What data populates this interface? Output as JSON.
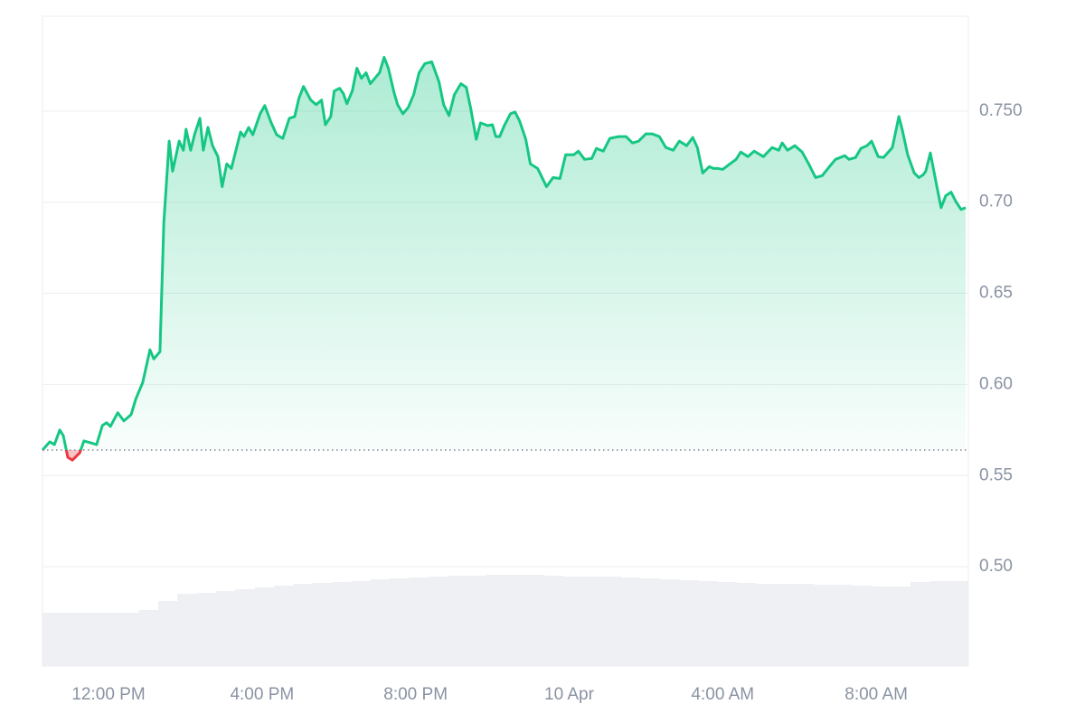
{
  "chart_data": {
    "type": "line",
    "color": "#16c784",
    "down_color": "#ea3943",
    "baseline": 0.564,
    "grid": true,
    "xlim": [
      -1.72,
      22.4
    ],
    "ylim": [
      0.4455,
      0.802
    ],
    "xticks": [
      {
        "value": 0,
        "label": "12:00 PM"
      },
      {
        "value": 4,
        "label": "4:00 PM"
      },
      {
        "value": 8,
        "label": "8:00 PM"
      },
      {
        "value": 12,
        "label": "10 Apr"
      },
      {
        "value": 16,
        "label": "4:00 AM"
      },
      {
        "value": 20,
        "label": "8:00 AM"
      }
    ],
    "yticks": [
      {
        "value": 0.5,
        "label": "0.50"
      },
      0.55,
      {
        "value": 0.6,
        "label": "0.60"
      },
      0.65,
      {
        "value": 0.7,
        "label": "0.70"
      },
      {
        "value": 0.75,
        "label": "0.750"
      }
    ],
    "x": [
      -1.72,
      -1.53,
      -1.41,
      -1.27,
      -1.18,
      -1.06,
      -0.94,
      -0.75,
      -0.64,
      -0.47,
      -0.31,
      -0.16,
      -0.05,
      0.05,
      0.24,
      0.4,
      0.59,
      0.71,
      0.89,
      1.08,
      1.18,
      1.34,
      1.44,
      1.58,
      1.67,
      1.84,
      1.95,
      2.02,
      2.14,
      2.24,
      2.38,
      2.47,
      2.59,
      2.71,
      2.85,
      2.96,
      3.08,
      3.2,
      3.32,
      3.44,
      3.53,
      3.65,
      3.76,
      3.95,
      4.07,
      4.24,
      4.38,
      4.54,
      4.71,
      4.85,
      4.96,
      5.08,
      5.27,
      5.41,
      5.55,
      5.65,
      5.79,
      5.88,
      6.02,
      6.12,
      6.21,
      6.35,
      6.47,
      6.59,
      6.71,
      6.82,
      6.96,
      7.06,
      7.18,
      7.29,
      7.44,
      7.53,
      7.67,
      7.81,
      7.95,
      8.09,
      8.24,
      8.42,
      8.61,
      8.73,
      8.87,
      9.01,
      9.18,
      9.32,
      9.44,
      9.58,
      9.69,
      9.88,
      10,
      10.09,
      10.19,
      10.31,
      10.47,
      10.59,
      10.71,
      10.87,
      10.99,
      11.18,
      11.41,
      11.58,
      11.76,
      11.91,
      12.12,
      12.24,
      12.4,
      12.59,
      12.71,
      12.89,
      13.06,
      13.29,
      13.48,
      13.65,
      13.81,
      14,
      14.16,
      14.35,
      14.52,
      14.71,
      14.87,
      15.06,
      15.22,
      15.34,
      15.48,
      15.65,
      15.76,
      15.88,
      16,
      16.19,
      16.35,
      16.47,
      16.66,
      16.82,
      17.06,
      17.29,
      17.46,
      17.55,
      17.69,
      17.88,
      18.07,
      18.24,
      18.42,
      18.59,
      18.78,
      18.94,
      19.06,
      19.18,
      19.29,
      19.46,
      19.6,
      19.76,
      19.88,
      20.05,
      20.19,
      20.42,
      20.59,
      20.68,
      20.82,
      20.99,
      21.11,
      21.22,
      21.29,
      21.41,
      21.58,
      21.69,
      21.81,
      21.95,
      22.07,
      22.21,
      22.33
    ],
    "values": [
      0.564,
      0.5685,
      0.567,
      0.575,
      0.572,
      0.56,
      0.5585,
      0.5625,
      0.569,
      0.568,
      0.567,
      0.5775,
      0.579,
      0.577,
      0.5845,
      0.58,
      0.5835,
      0.592,
      0.601,
      0.619,
      0.614,
      0.618,
      0.6885,
      0.7335,
      0.717,
      0.7335,
      0.7285,
      0.74,
      0.7285,
      0.737,
      0.746,
      0.7285,
      0.741,
      0.731,
      0.725,
      0.7085,
      0.721,
      0.7185,
      0.7285,
      0.7385,
      0.736,
      0.741,
      0.737,
      0.7485,
      0.753,
      0.7435,
      0.737,
      0.735,
      0.746,
      0.747,
      0.757,
      0.7635,
      0.756,
      0.7535,
      0.756,
      0.7425,
      0.747,
      0.761,
      0.7625,
      0.7595,
      0.754,
      0.761,
      0.7735,
      0.768,
      0.771,
      0.765,
      0.7685,
      0.771,
      0.7795,
      0.7735,
      0.76,
      0.7535,
      0.7485,
      0.752,
      0.759,
      0.771,
      0.776,
      0.777,
      0.766,
      0.7535,
      0.7475,
      0.759,
      0.765,
      0.763,
      0.751,
      0.7345,
      0.7435,
      0.742,
      0.7425,
      0.736,
      0.736,
      0.742,
      0.7485,
      0.7495,
      0.7445,
      0.7345,
      0.721,
      0.7185,
      0.7085,
      0.7135,
      0.713,
      0.726,
      0.726,
      0.728,
      0.7235,
      0.724,
      0.7295,
      0.728,
      0.735,
      0.736,
      0.736,
      0.7325,
      0.7335,
      0.7375,
      0.7375,
      0.736,
      0.73,
      0.7285,
      0.7335,
      0.731,
      0.7355,
      0.73,
      0.716,
      0.7195,
      0.7185,
      0.7185,
      0.718,
      0.721,
      0.7235,
      0.7275,
      0.725,
      0.728,
      0.725,
      0.73,
      0.7285,
      0.7325,
      0.7285,
      0.731,
      0.7275,
      0.721,
      0.7135,
      0.7145,
      0.7195,
      0.7235,
      0.7245,
      0.7255,
      0.7235,
      0.7245,
      0.7295,
      0.731,
      0.7335,
      0.725,
      0.7245,
      0.73,
      0.747,
      0.7395,
      0.726,
      0.716,
      0.7135,
      0.715,
      0.717,
      0.727,
      0.7085,
      0.697,
      0.7035,
      0.7055,
      0.7005,
      0.696,
      0.697
    ],
    "volume": {
      "color": "#eef0f4",
      "lim": [
        0,
        110
      ],
      "values": [
        59,
        59,
        59,
        59,
        59,
        62,
        72,
        80,
        81,
        83,
        85,
        87,
        89,
        91,
        92,
        93,
        94,
        96,
        97,
        98,
        99,
        100,
        100,
        101,
        101,
        101,
        100,
        99,
        99,
        99,
        98,
        97,
        96,
        95,
        94,
        93,
        92,
        91,
        91,
        91,
        90,
        90,
        89,
        88,
        88,
        93,
        94,
        94
      ]
    }
  }
}
